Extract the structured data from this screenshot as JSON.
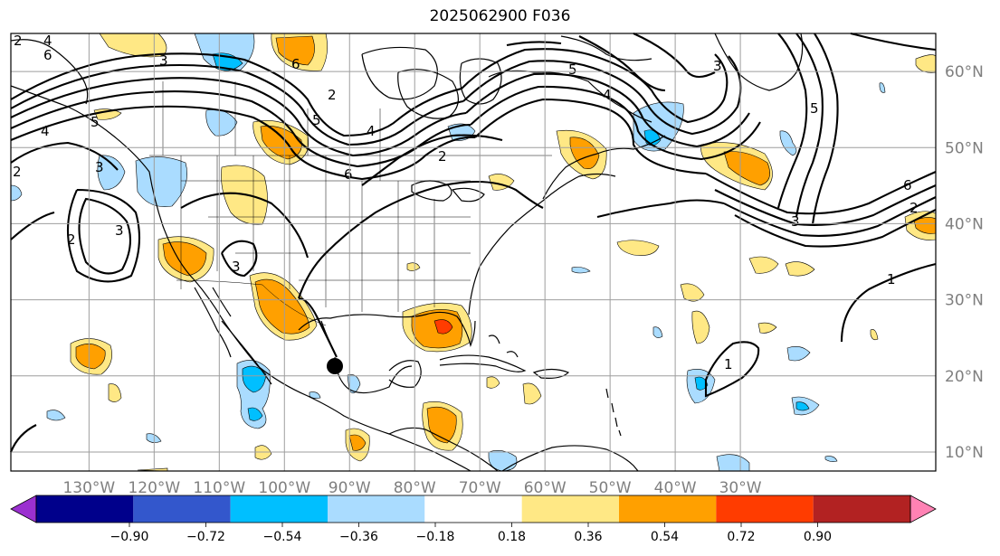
{
  "title": "2025062900 F036",
  "map": {
    "lon_range": [
      -142,
      0
    ],
    "lat_range": [
      7.5,
      65
    ],
    "grid_color": "#9e9e9e",
    "lat_labels": [
      "10°N",
      "20°N",
      "30°N",
      "40°N",
      "50°N",
      "60°N"
    ],
    "lon_labels": [
      "130°W",
      "120°W",
      "110°W",
      "100°W",
      "90°W",
      "80°W",
      "70°W",
      "60°W",
      "50°W",
      "40°W",
      "30°W"
    ],
    "contour_labels": [
      "2",
      "3",
      "4",
      "5",
      "6",
      "2",
      "3",
      "4",
      "5",
      "6",
      "2",
      "3",
      "6",
      "5",
      "4",
      "3",
      "2",
      "1",
      "1",
      "2",
      "3",
      "2",
      "6",
      "5",
      "4",
      "3"
    ],
    "marker": "black-dot"
  },
  "colorbar": {
    "labels": [
      "−0.90",
      "−0.72",
      "−0.54",
      "−0.36",
      "−0.18",
      "0.18",
      "0.36",
      "0.54",
      "0.72",
      "0.90"
    ],
    "colors": [
      "#9b30d0",
      "#00008b",
      "#3357cc",
      "#00bfff",
      "#aadcff",
      "#ffffff",
      "#ffe885",
      "#ffa000",
      "#ff3c00",
      "#b22222",
      "#ff82b4"
    ]
  },
  "fill_colors": {
    "light_blue": "#aadcff",
    "blue": "#00bfff",
    "yellow": "#ffe885",
    "orange": "#ffa000",
    "red": "#ff3c00"
  }
}
